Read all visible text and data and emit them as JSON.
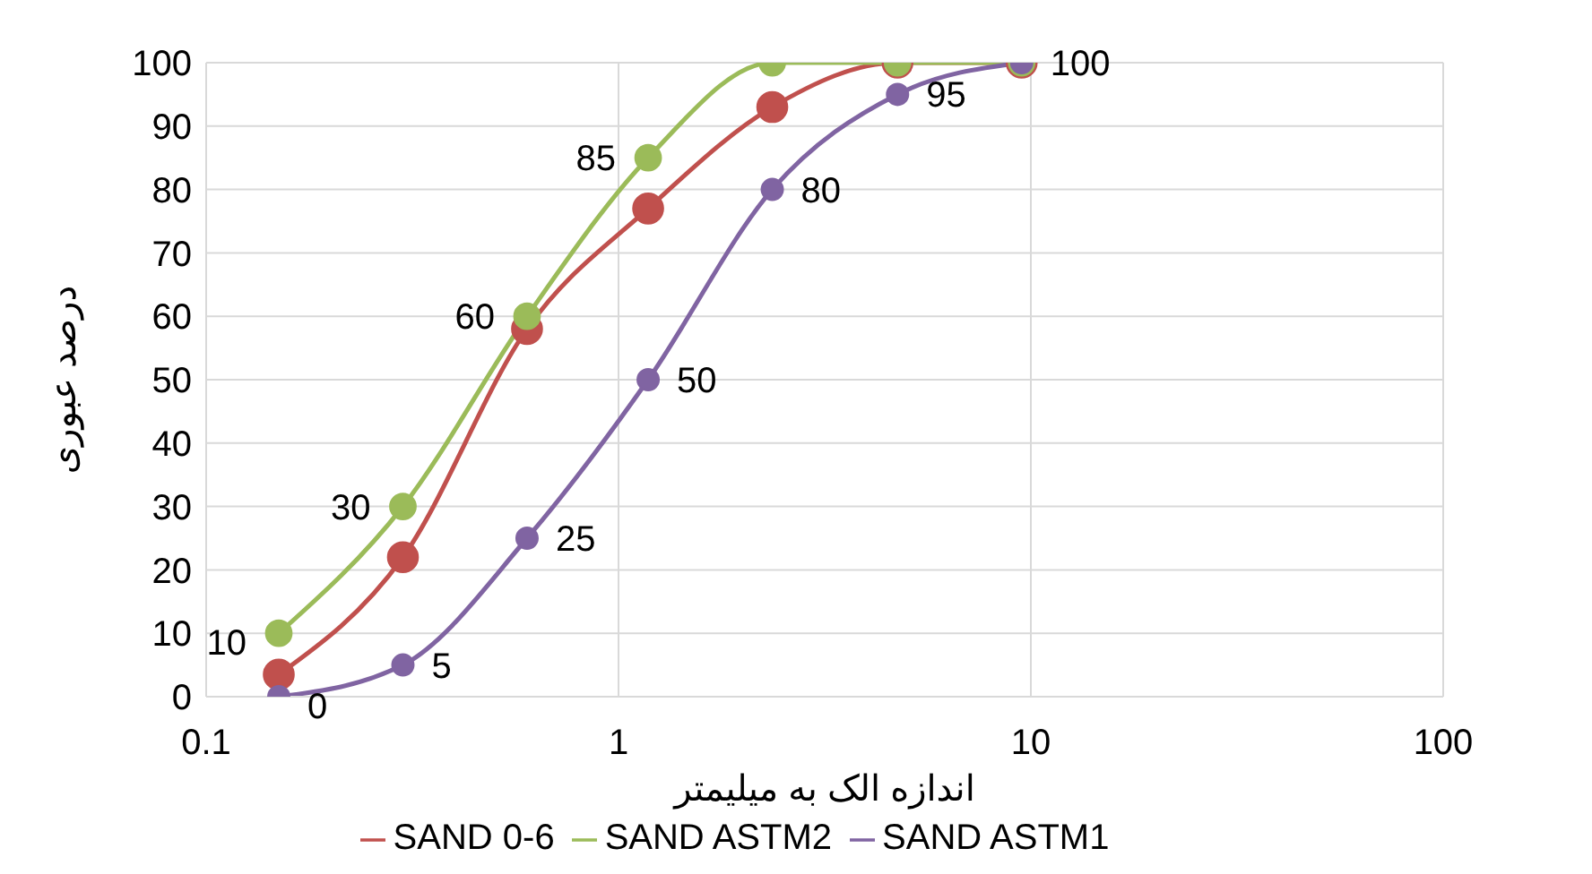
{
  "chart_data": {
    "type": "line",
    "xlabel": "اندازه الک به میلیمتر",
    "ylabel": "درصد عبوری",
    "x": [
      0.15,
      0.3,
      0.6,
      1.18,
      2.36,
      4.75,
      9.5
    ],
    "series": [
      {
        "name": "SAND 0-6",
        "color": "#c0504d",
        "values": [
          3.5,
          22,
          58,
          77,
          93,
          100,
          100
        ]
      },
      {
        "name": "SAND ASTM2",
        "color": "#9bbb59",
        "values": [
          10,
          30,
          60,
          85,
          100,
          100,
          100
        ],
        "value_labels": [
          "10",
          "30",
          "60",
          "85",
          null,
          null,
          null
        ]
      },
      {
        "name": "SAND ASTM1",
        "color": "#8064a2",
        "values": [
          0,
          5,
          25,
          50,
          80,
          95,
          100
        ],
        "value_labels": [
          "0",
          "5",
          "25",
          "50",
          "80",
          "95",
          "100"
        ]
      }
    ],
    "log": "x",
    "xlim": [
      0.1,
      100
    ],
    "xticks": [
      0.1,
      1,
      10,
      100
    ],
    "ylim": [
      0,
      100
    ],
    "yticks": [
      0,
      10,
      20,
      30,
      40,
      50,
      60,
      70,
      80,
      90,
      100
    ],
    "grid": true,
    "legend": "bottom",
    "marker": "circle",
    "line_style": "solid"
  }
}
